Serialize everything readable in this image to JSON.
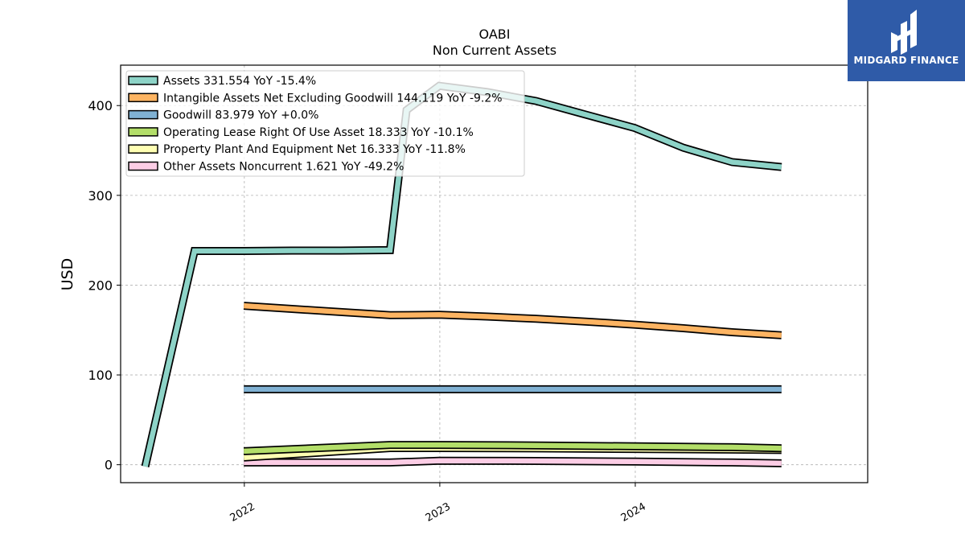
{
  "chart_data": {
    "type": "line",
    "title": "OABI",
    "subtitle": "Non Current  Assets",
    "ylabel": "USD",
    "xlabel": "",
    "ylim": [
      -20,
      445
    ],
    "xlim": [
      "2021-05-15",
      "2025-03-10"
    ],
    "yticks": [
      0,
      100,
      200,
      300,
      400
    ],
    "xticks": [
      {
        "label": "2022",
        "date": "2022-01-01"
      },
      {
        "label": "2023",
        "date": "2023-01-01"
      },
      {
        "label": "2024",
        "date": "2024-01-01"
      }
    ],
    "grid": true,
    "legend_position": "top-left",
    "series": [
      {
        "name": "Assets",
        "legend": "Assets  331.554 YoY -15.4%",
        "color": "#8dd3c7",
        "x": [
          "2021-06-30",
          "2021-09-30",
          "2021-12-31",
          "2022-03-31",
          "2022-06-30",
          "2022-09-30",
          "2022-10-31",
          "2022-12-31",
          "2023-03-31",
          "2023-06-30",
          "2023-09-30",
          "2023-12-31",
          "2024-03-31",
          "2024-06-30",
          "2024-09-30"
        ],
        "values": [
          -2,
          238,
          238,
          238.5,
          238.5,
          239,
          395,
          422,
          415,
          405,
          390,
          375,
          353,
          337,
          331.554
        ]
      },
      {
        "name": "Intangible Assets Net Excluding Goodwill",
        "legend": "Intangible Assets Net Excluding Goodwill  144.119 YoY -9.2%",
        "color": "#fdb462",
        "x": [
          "2021-12-31",
          "2022-03-31",
          "2022-06-30",
          "2022-09-30",
          "2022-12-31",
          "2023-03-31",
          "2023-06-30",
          "2023-09-30",
          "2023-12-31",
          "2024-03-31",
          "2024-06-30",
          "2024-09-30"
        ],
        "values": [
          177,
          173.5,
          170,
          166.5,
          167,
          165,
          162.5,
          159.5,
          156,
          152,
          147.5,
          144.119
        ]
      },
      {
        "name": "Goodwill",
        "legend": "Goodwill  83.979 YoY +0.0%",
        "color": "#80b1d3",
        "x": [
          "2021-12-31",
          "2024-09-30"
        ],
        "values": [
          83.979,
          83.979
        ]
      },
      {
        "name": "Operating Lease Right Of Use Asset",
        "legend": "Operating Lease Right Of Use Asset  18.333 YoY -10.1%",
        "color": "#b3de69",
        "x": [
          "2021-12-31",
          "2022-09-30",
          "2022-12-31",
          "2023-06-30",
          "2023-12-31",
          "2024-06-30",
          "2024-09-30"
        ],
        "values": [
          15,
          22,
          22,
          21.5,
          20.5,
          19.5,
          18.333
        ]
      },
      {
        "name": "Property Plant And Equipment Net",
        "legend": "Property Plant And Equipment Net  16.333 YoY -11.8%",
        "color": "#ffffb3",
        "x": [
          "2021-12-31",
          "2022-09-30",
          "2022-12-31",
          "2023-06-30",
          "2023-12-31",
          "2024-06-30",
          "2024-09-30"
        ],
        "values": [
          8,
          18.5,
          18.5,
          18.2,
          17.5,
          16.8,
          16.333
        ]
      },
      {
        "name": "Other Assets Noncurrent",
        "legend": "Other Assets Noncurrent  1.621 YoY -49.2%",
        "color": "#fccde5",
        "x": [
          "2021-12-31",
          "2022-09-30",
          "2022-12-31",
          "2023-06-30",
          "2023-12-31",
          "2024-06-30",
          "2024-09-30"
        ],
        "values": [
          2.5,
          2.5,
          4.5,
          4.2,
          3.5,
          2.5,
          1.621
        ]
      }
    ]
  },
  "branding": {
    "logo_text": "MIDGARD FINANCE",
    "logo_color": "#2f5ba8"
  }
}
